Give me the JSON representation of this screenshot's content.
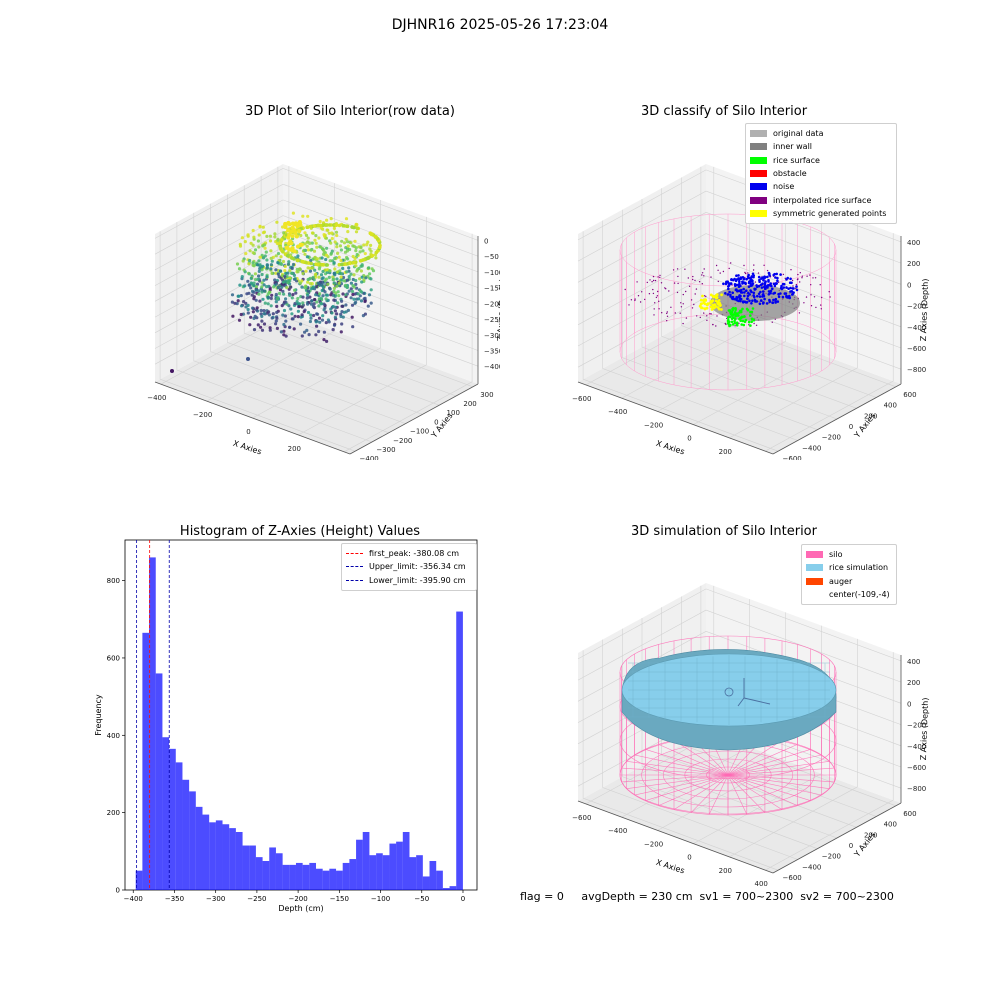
{
  "suptitle": "DJHNR16 2025-05-26 17:23:04",
  "status_line": "flag = 0     avgDepth = 230 cm  sv1 = 700~2300  sv2 = 700~2300",
  "colors": {
    "viridis_low": "#440154",
    "viridis_mid": "#21918c",
    "viridis_high": "#fde725",
    "silo_pink": "#ff69b4",
    "rice_blue": "#87ceeb",
    "hist_blue": "#0000ff"
  },
  "chart_data": [
    {
      "id": "raw",
      "type": "scatter",
      "title": "3D Plot of Silo Interior(row data)",
      "xlabel": "X Axies",
      "ylabel": "Y Axies",
      "zlabel": "Z Axies (Depth)",
      "x_ticks": [
        "−400",
        "−200",
        "0",
        "200",
        "400"
      ],
      "y_ticks": [
        "−400",
        "−300",
        "−200",
        "−100",
        "0",
        "100",
        "200",
        "300"
      ],
      "z_ticks": [
        "0",
        "−50",
        "−100",
        "−150",
        "−200",
        "−250",
        "−300",
        "−350",
        "−400"
      ],
      "xlim": [
        -450,
        450
      ],
      "ylim": [
        -450,
        350
      ],
      "zlim": [
        -420,
        10
      ],
      "colormap": "viridis"
    },
    {
      "id": "classify",
      "type": "scatter",
      "title": "3D classify of Silo Interior",
      "xlabel": "X Axies",
      "ylabel": "Y Axies",
      "zlabel": "Z Axies (Depth)",
      "x_ticks": [
        "−600",
        "−400",
        "−200",
        "0",
        "200",
        "400"
      ],
      "y_ticks": [
        "−600",
        "−400",
        "−200",
        "0",
        "200",
        "400",
        "600"
      ],
      "z_ticks": [
        "400",
        "200",
        "0",
        "−200",
        "−400",
        "−600",
        "−800"
      ],
      "legend_position": "top-right",
      "legend": [
        {
          "label": "original data",
          "color": "#b0b0b0"
        },
        {
          "label": "inner wall",
          "color": "#808080"
        },
        {
          "label": "rice surface",
          "color": "#00ff00"
        },
        {
          "label": "obstacle",
          "color": "#ff0000"
        },
        {
          "label": "noise",
          "color": "#0000ee"
        },
        {
          "label": "interpolated rice surface",
          "color": "#800080"
        },
        {
          "label": "symmetric generated points",
          "color": "#ffff00"
        }
      ]
    },
    {
      "id": "hist",
      "type": "bar",
      "title": "Histogram of Z-Axies (Height) Values",
      "xlabel": "Depth (cm)",
      "ylabel": "Frequency",
      "xlim": [
        -410,
        17
      ],
      "ylim": [
        0,
        905
      ],
      "x_ticks": [
        -400,
        -350,
        -300,
        -250,
        -200,
        -150,
        -100,
        -50,
        0
      ],
      "y_ticks": [
        0,
        200,
        400,
        600,
        800
      ],
      "bin_width": 8.1,
      "bin_start": -397,
      "values": [
        50,
        665,
        860,
        560,
        395,
        365,
        330,
        285,
        255,
        215,
        195,
        175,
        180,
        170,
        160,
        150,
        115,
        115,
        85,
        75,
        110,
        95,
        65,
        65,
        70,
        65,
        70,
        55,
        50,
        55,
        50,
        70,
        80,
        130,
        150,
        90,
        95,
        90,
        120,
        125,
        150,
        85,
        90,
        35,
        75,
        50,
        5,
        10,
        720
      ],
      "bar_color": "#0000ff",
      "vlines": [
        {
          "label": "first_peak: -380.08 cm",
          "x": -380.08,
          "color": "#ff0000"
        },
        {
          "label": "Upper_limit: -356.34 cm",
          "x": -356.34,
          "color": "#0000aa"
        },
        {
          "label": "Lower_limit: -395.90 cm",
          "x": -395.9,
          "color": "#0000aa"
        }
      ],
      "legend_position": "top-right"
    },
    {
      "id": "sim",
      "type": "surface",
      "title": "3D simulation of Silo Interior",
      "xlabel": "X Axies",
      "ylabel": "Y Axies",
      "zlabel": "Z Axies (Depth)",
      "x_ticks": [
        "−600",
        "−400",
        "−200",
        "0",
        "200",
        "400"
      ],
      "y_ticks": [
        "−600",
        "−400",
        "−200",
        "0",
        "200",
        "400",
        "600"
      ],
      "z_ticks": [
        "400",
        "200",
        "0",
        "−200",
        "−400",
        "−600",
        "−800"
      ],
      "legend_position": "top-right",
      "legend": [
        {
          "label": "silo",
          "color": "#ff69b4"
        },
        {
          "label": "rice simulation",
          "color": "#87ceeb"
        },
        {
          "label": "auger",
          "color": "#ff4500"
        },
        {
          "label": "center(-109,-4)",
          "color": ""
        }
      ]
    }
  ]
}
